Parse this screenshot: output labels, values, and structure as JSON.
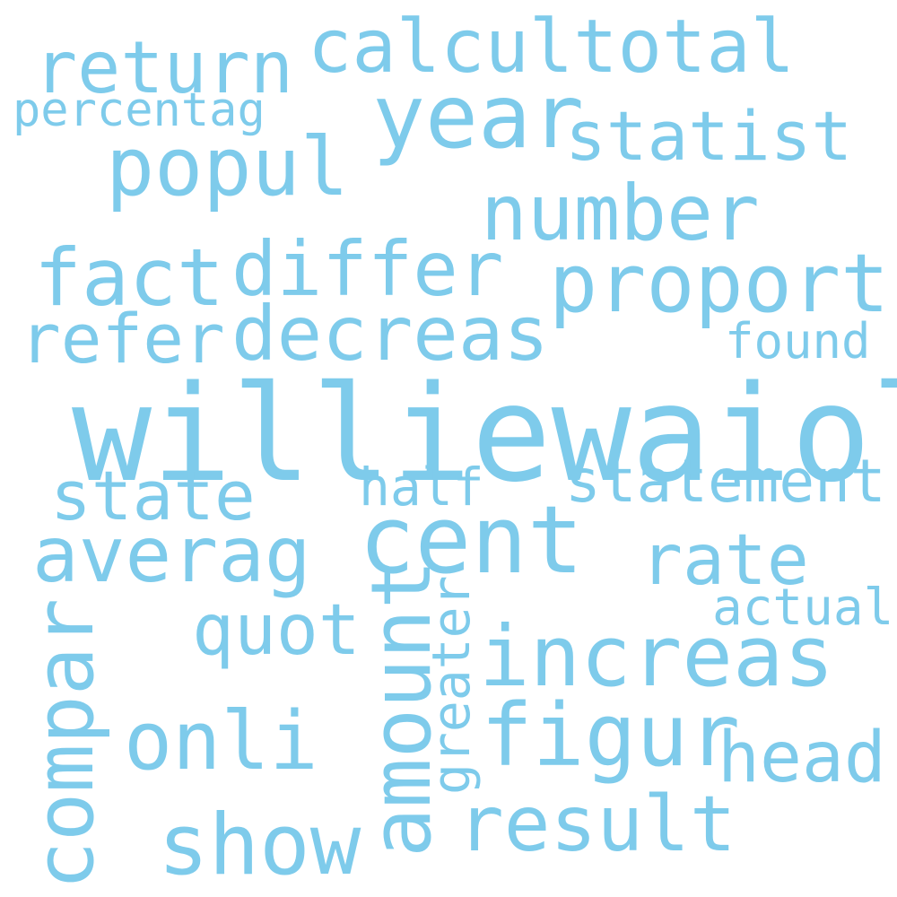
{
  "colors": {
    "word": "#7ecbeb",
    "background": "#ffffff"
  },
  "words": {
    "williewaiola": "williewaiola",
    "return": "return",
    "calcultotal": "calcultotal",
    "percentag": "percentag",
    "year": "year",
    "popul": "popul",
    "statist": "statist",
    "number": "number",
    "fact": "fact",
    "differ": "differ",
    "proport": "proport",
    "refer": "refer",
    "decreas": "decreas",
    "found": "found",
    "state": "state",
    "half": "half",
    "statement": "statement",
    "averag": "averag",
    "cent": "cent",
    "rate": "rate",
    "actual": "actual",
    "quot": "quot",
    "amount": "amount",
    "greater": "greater",
    "increas": "increas",
    "compar": "compar",
    "onli": "onli",
    "figur": "figur",
    "head": "head",
    "show": "show",
    "result": "result"
  }
}
